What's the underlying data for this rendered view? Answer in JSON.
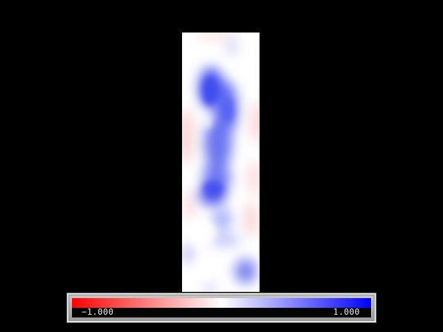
{
  "viewport": {
    "background": "#000000"
  },
  "legend": {
    "min_label": "−1.000",
    "max_label": "1.000",
    "min_value": -1.0,
    "max_value": 1.0,
    "colors": {
      "negative": "#ff0000",
      "zero": "#ffffff",
      "positive": "#0000ff"
    }
  }
}
